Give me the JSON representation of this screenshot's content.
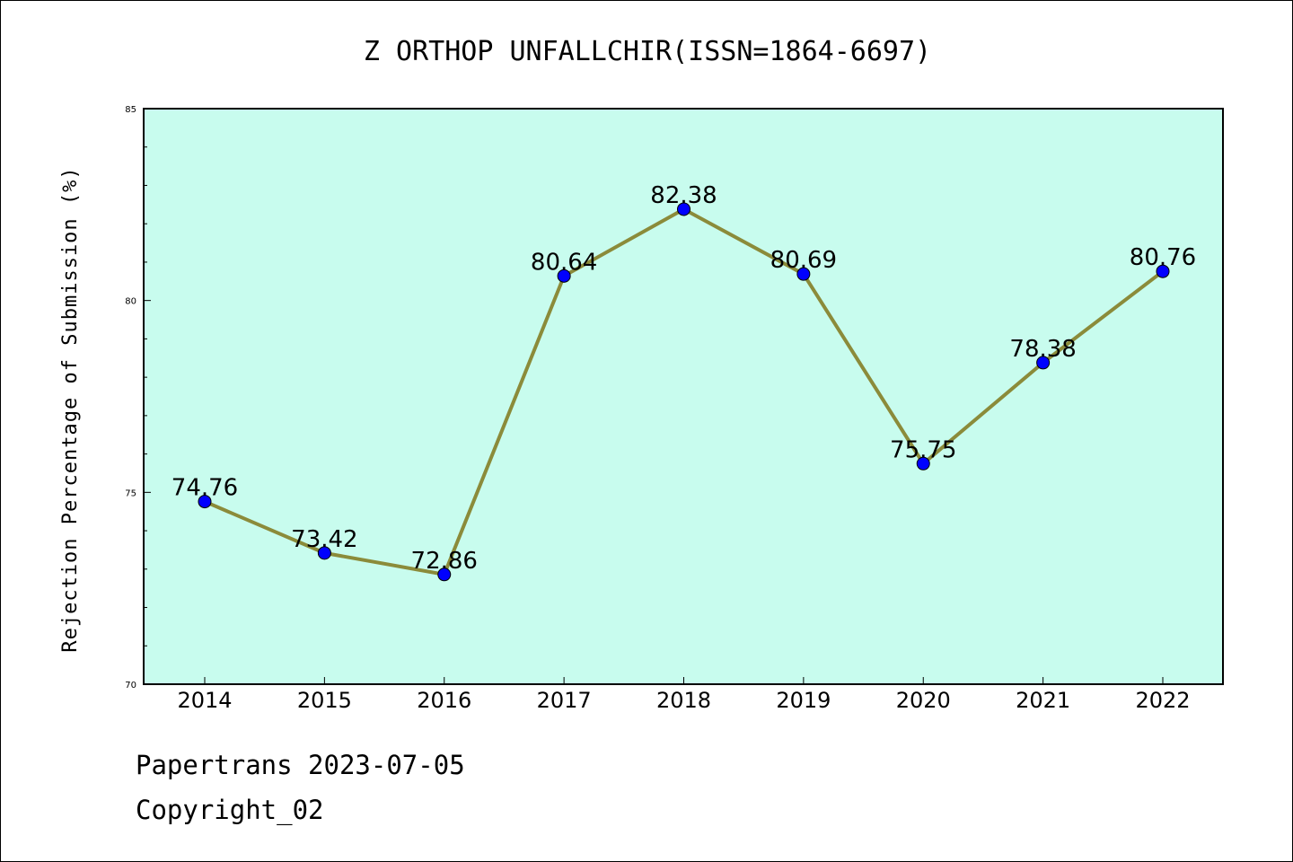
{
  "chart_data": {
    "type": "line",
    "title": "Z ORTHOP UNFALLCHIR(ISSN=1864-6697)",
    "xlabel": "",
    "ylabel": "Rejection Percentage of Submission (%)",
    "categories": [
      "2014",
      "2015",
      "2016",
      "2017",
      "2018",
      "2019",
      "2020",
      "2021",
      "2022"
    ],
    "values": [
      74.76,
      73.42,
      72.86,
      80.64,
      82.38,
      80.69,
      75.75,
      78.38,
      80.76
    ],
    "data_labels": [
      "74.76",
      "73.42",
      "72.86",
      "80.64",
      "82.38",
      "80.69",
      "75.75",
      "78.38",
      "80.76"
    ],
    "ylim": [
      70,
      85
    ],
    "yticks": [
      "70",
      "75",
      "80",
      "85"
    ],
    "grid": false,
    "colors": {
      "plot_background": "#c8fcee",
      "line": "#8b8b3a",
      "marker": "#0000ff"
    }
  },
  "footer": {
    "line1": "Papertrans 2023-07-05",
    "line2": "Copyright_02"
  }
}
